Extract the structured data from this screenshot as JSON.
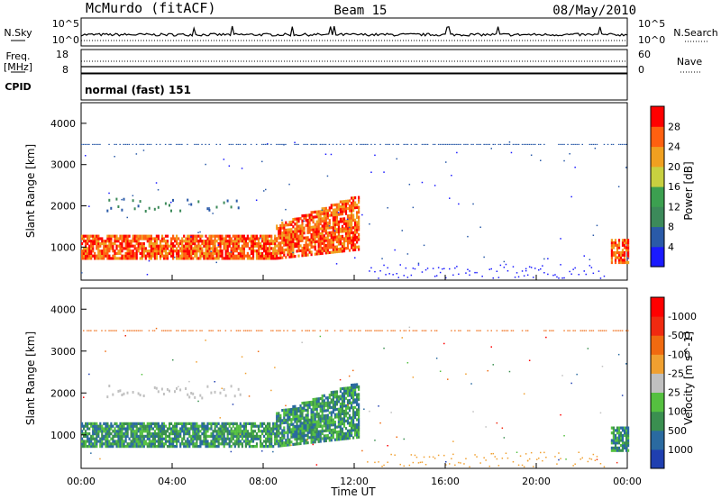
{
  "header": {
    "station": "McMurdo (fitACF)",
    "beam": "Beam 15",
    "date": "08/May/2010"
  },
  "status_panels": {
    "nsky_label": "N.Sky",
    "nsearch_label": "N.Search",
    "freq_label": "Freq.",
    "freq_unit": "[MHz]",
    "nave_label": "Nave",
    "cpid_label": "CPID",
    "cpid_value": "normal (fast) 151",
    "noise_ticks_left": [
      "10^5",
      "10^0"
    ],
    "noise_ticks_right": [
      "10^5",
      "10^0"
    ],
    "freq_ticks": [
      "18",
      "8"
    ],
    "nave_ticks": [
      "60",
      "0"
    ]
  },
  "chart_data": [
    {
      "type": "heatmap",
      "name": "power",
      "ylabel": "Slant Range [km]",
      "ylim": [
        200,
        4500
      ],
      "yticks": [
        1000,
        2000,
        3000,
        4000
      ],
      "xlim": [
        0,
        24
      ],
      "xticks": [
        "00:00",
        "04:00",
        "08:00",
        "12:00",
        "16:00",
        "20:00",
        "00:00"
      ],
      "colorbar": {
        "label": "Power [dB]",
        "ticks": [
          "4",
          "8",
          "12",
          "16",
          "20",
          "24",
          "28"
        ],
        "colors": [
          "#1a1aff",
          "#2a5aa8",
          "#3c8a5a",
          "#3ca050",
          "#c8d040",
          "#f0a020",
          "#ff6010",
          "#ff0000"
        ]
      }
    },
    {
      "type": "heatmap",
      "name": "velocity",
      "ylabel": "Slant Range [km]",
      "ylim": [
        200,
        4500
      ],
      "yticks": [
        1000,
        2000,
        3000,
        4000
      ],
      "xlim": [
        0,
        24
      ],
      "xticks": [
        "00:00",
        "04:00",
        "08:00",
        "12:00",
        "16:00",
        "20:00",
        "00:00"
      ],
      "xlabel": "Time UT",
      "colorbar": {
        "label": "Velocity [m s^-1]",
        "ticks": [
          "1000",
          "500",
          "100",
          "25",
          "-25",
          "-100",
          "-500",
          "-1000"
        ],
        "colors": [
          "#1f3fb0",
          "#2a6aa0",
          "#3a8f50",
          "#55c040",
          "#c0c0c0",
          "#f0a030",
          "#f06a10",
          "#f02a10",
          "#ff0000"
        ]
      }
    }
  ]
}
